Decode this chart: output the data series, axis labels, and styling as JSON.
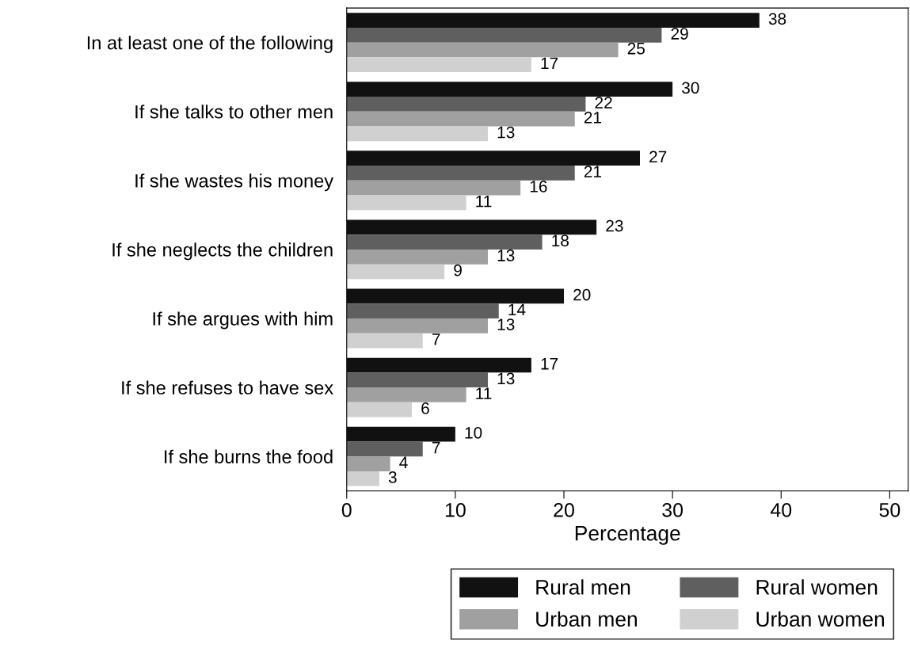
{
  "chart_data": {
    "type": "bar",
    "orientation": "horizontal",
    "xlabel": "Percentage",
    "categories": [
      "In at least one of the following",
      "If she talks to other men",
      "If she wastes his money",
      "If she neglects the children",
      "If she argues with him",
      "If she refuses to have sex",
      "If she burns the food"
    ],
    "series": [
      {
        "name": "Rural men",
        "color": "#111111",
        "values": [
          38,
          30,
          27,
          23,
          20,
          17,
          10
        ]
      },
      {
        "name": "Rural women",
        "color": "#5f5f5f",
        "values": [
          29,
          22,
          21,
          18,
          14,
          13,
          7
        ]
      },
      {
        "name": "Urban men",
        "color": "#a0a0a0",
        "values": [
          25,
          21,
          16,
          13,
          13,
          11,
          4
        ]
      },
      {
        "name": "Urban women",
        "color": "#d0d0d0",
        "values": [
          17,
          13,
          11,
          9,
          7,
          6,
          3
        ]
      }
    ],
    "xlim": [
      0,
      51.7
    ],
    "xticks": [
      0,
      10,
      20,
      30,
      40,
      50
    ],
    "data_labels": true,
    "grid": false,
    "legend": "bottom"
  }
}
